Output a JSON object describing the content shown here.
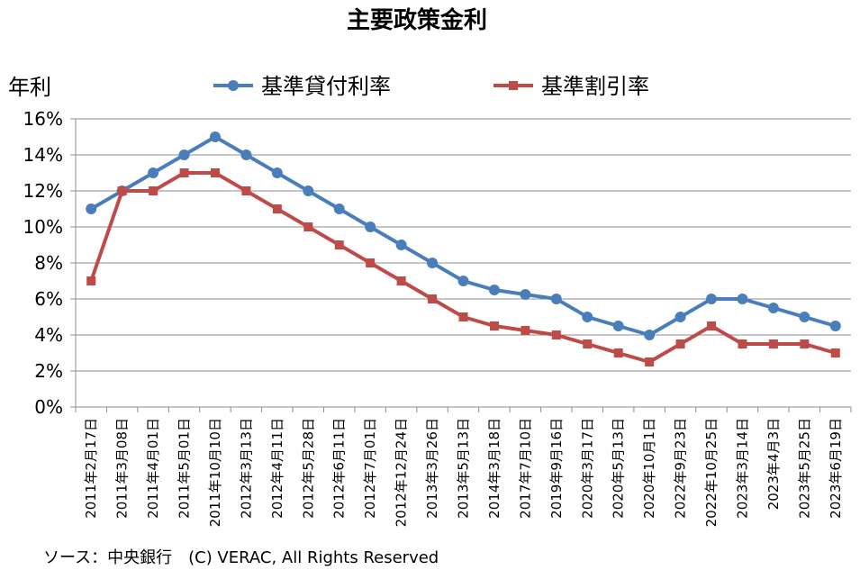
{
  "chart_data": {
    "type": "line",
    "title": "主要政策金利",
    "ylabel": "年利",
    "xlabel": "",
    "categories": [
      "2011年2月17日",
      "2011年3月08日",
      "2011年4月01日",
      "2011年5月01日",
      "2011年10月10日",
      "2012年3月13日",
      "2012年4月11日",
      "2012年5月28日",
      "2012年6月11日",
      "2012年7月01日",
      "2012年12月24日",
      "2013年3月26日",
      "2013年5月13日",
      "2014年3月18日",
      "2017年7月10日",
      "2019年9月16日",
      "2020年3月17日",
      "2020年5月13日",
      "2020年10月1日",
      "2022年9月23日",
      "2022年10月25日",
      "2023年3月14日",
      "2023年4月3日",
      "2023年5月25日",
      "2023年6月19日"
    ],
    "series": [
      {
        "name": "基準貸付利率",
        "color": "#4A7EBB",
        "marker": "circle",
        "values": [
          11,
          12,
          13,
          14,
          15,
          14,
          13,
          12,
          11,
          10,
          9,
          8,
          7,
          6.5,
          6.25,
          6,
          5,
          4.5,
          4,
          5,
          6,
          6,
          5.5,
          5,
          4.5
        ]
      },
      {
        "name": "基準割引率",
        "color": "#BE4B48",
        "marker": "square",
        "values": [
          7,
          12,
          12,
          13,
          13,
          12,
          11,
          10,
          9,
          8,
          7,
          6,
          5,
          4.5,
          4.25,
          4,
          3.5,
          3,
          2.5,
          3.5,
          4.5,
          3.5,
          3.5,
          3.5,
          3
        ]
      }
    ],
    "ylim": [
      0,
      16
    ],
    "yticks": [
      "0%",
      "2%",
      "4%",
      "6%",
      "8%",
      "10%",
      "12%",
      "14%",
      "16%"
    ],
    "grid": true,
    "legend": "top"
  },
  "source": "ソース：中央銀行　(C) VERAC, All Rights Reserved"
}
